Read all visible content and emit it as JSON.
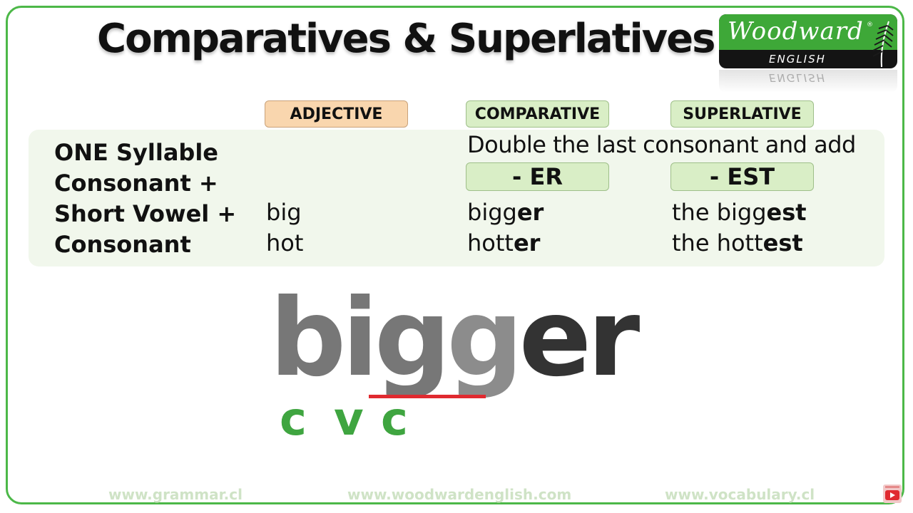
{
  "title": "Comparatives & Superlatives",
  "logo": {
    "brand": "Woodward",
    "registered": "®",
    "sub": "ENGLISH"
  },
  "headers": {
    "adjective": "ADJECTIVE",
    "comparative": "COMPARATIVE",
    "superlative": "SUPERLATIVE"
  },
  "rule_lines": [
    "ONE Syllable",
    "Consonant +",
    "Short Vowel +",
    "Consonant"
  ],
  "instruction": "Double the last consonant and add",
  "suffixes": {
    "comparative": "- ER",
    "superlative": "- EST"
  },
  "examples": [
    {
      "adjective": "big",
      "comparative_base": "bigg",
      "comparative_suffix": "er",
      "superlative_base": "the bigg",
      "superlative_suffix": "est"
    },
    {
      "adjective": "hot",
      "comparative_base": "hott",
      "comparative_suffix": "er",
      "superlative_base": "the hott",
      "superlative_suffix": "est"
    }
  ],
  "showcase": {
    "part1": "big",
    "part2": "g",
    "part3": "er"
  },
  "cvc": {
    "c1": "c",
    "v": "v",
    "c2": "c"
  },
  "footer": {
    "left": "www.grammar.cl",
    "center": "www.woodwardenglish.com",
    "right": "www.vocabulary.cl"
  },
  "colors": {
    "frame": "#4cb848",
    "accent_green": "#3fa540",
    "underline_red": "#e02a30",
    "adjective_pill": "#f9d6ae",
    "comparative_pill": "#d9eec6"
  },
  "icons": {
    "logo": "fern-icon",
    "subscribe": "youtube-icon"
  }
}
